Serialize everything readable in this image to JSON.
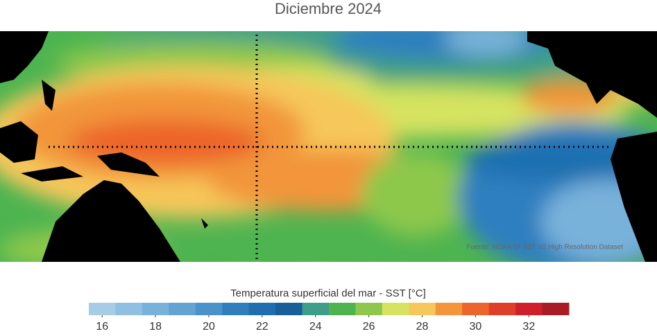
{
  "title": "Diciembre 2024",
  "source": "Fuente: NOAA OI SST V2 High Resolution Dataset",
  "colorbar": {
    "label": "Temperatura superficial del mar - SST  [°C]",
    "lim": [
      15.5,
      33.5
    ],
    "ticks": [
      16,
      18,
      20,
      22,
      24,
      26,
      28,
      30,
      32
    ],
    "colors": [
      "#a6cce6",
      "#8fbfe1",
      "#78b1da",
      "#62a3d3",
      "#4a93ca",
      "#2f7fbf",
      "#1f6fb0",
      "#185e98",
      "#3f9e8a",
      "#4db450",
      "#8dc84c",
      "#d6e361",
      "#f6c75a",
      "#f2953b",
      "#ec652c",
      "#df3f28",
      "#cf1f2b",
      "#a91c25"
    ]
  }
}
